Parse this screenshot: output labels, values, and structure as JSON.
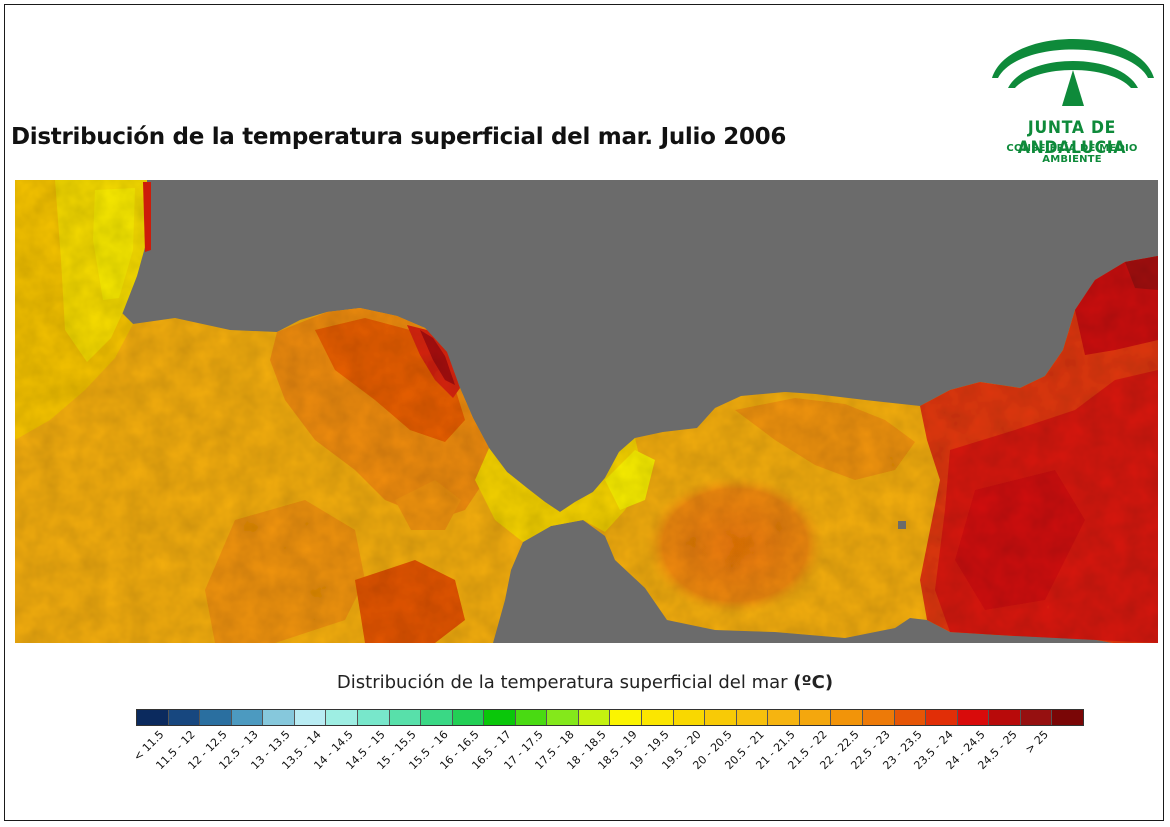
{
  "title": "Distribución de la temperatura superficial del mar. Julio 2006",
  "logo": {
    "name": "JUNTA DE ANDALUCIA",
    "department": "CONSEJERÍA DE MEDIO AMBIENTE",
    "color": "#0e8a3a"
  },
  "map": {
    "land_color": "#6b6b6b"
  },
  "legend": {
    "title": "Distribución de la temperatura superficial del mar",
    "unit": "(ºC)",
    "classes": [
      {
        "label": "< 11.5",
        "color": "#0b2a5e"
      },
      {
        "label": "11.5 - 12",
        "color": "#17477f"
      },
      {
        "label": "12 - 12.5",
        "color": "#2a6fa0"
      },
      {
        "label": "12.5 - 13",
        "color": "#4c9ac0"
      },
      {
        "label": "13 - 13.5",
        "color": "#86c8dc"
      },
      {
        "label": "13.5 - 14",
        "color": "#b9ecf3"
      },
      {
        "label": "14 - 14.5",
        "color": "#9eeee3"
      },
      {
        "label": "14.5 - 15",
        "color": "#78e7cb"
      },
      {
        "label": "15 - 15.5",
        "color": "#58e0aa"
      },
      {
        "label": "15.5 - 16",
        "color": "#3ad885"
      },
      {
        "label": "16 - 16.5",
        "color": "#22cf55"
      },
      {
        "label": "16.5 - 17",
        "color": "#0ac70a"
      },
      {
        "label": "17 - 17.5",
        "color": "#49da12"
      },
      {
        "label": "17.5 - 18",
        "color": "#84e81b"
      },
      {
        "label": "18 - 18.5",
        "color": "#c4f20f"
      },
      {
        "label": "18.5 - 19",
        "color": "#fbf400"
      },
      {
        "label": "19 - 19.5",
        "color": "#fbe600"
      },
      {
        "label": "19.5 - 20",
        "color": "#f9d800"
      },
      {
        "label": "20 - 20.5",
        "color": "#f8ca06"
      },
      {
        "label": "20.5 - 21",
        "color": "#f7c00c"
      },
      {
        "label": "21 - 21.5",
        "color": "#f6b410"
      },
      {
        "label": "21.5 - 22",
        "color": "#f4a70d"
      },
      {
        "label": "22 - 22.5",
        "color": "#f29409"
      },
      {
        "label": "22.5 - 23",
        "color": "#ed7a08"
      },
      {
        "label": "23 - 23.5",
        "color": "#e65506"
      },
      {
        "label": "23.5 - 24",
        "color": "#e12e07"
      },
      {
        "label": "24 - 24.5",
        "color": "#d90b0b"
      },
      {
        "label": "24.5 - 25",
        "color": "#b80a0a"
      },
      {
        "label": "> 25",
        "color": "#961010"
      },
      {
        "label": "",
        "color": "#7a0606"
      }
    ]
  }
}
